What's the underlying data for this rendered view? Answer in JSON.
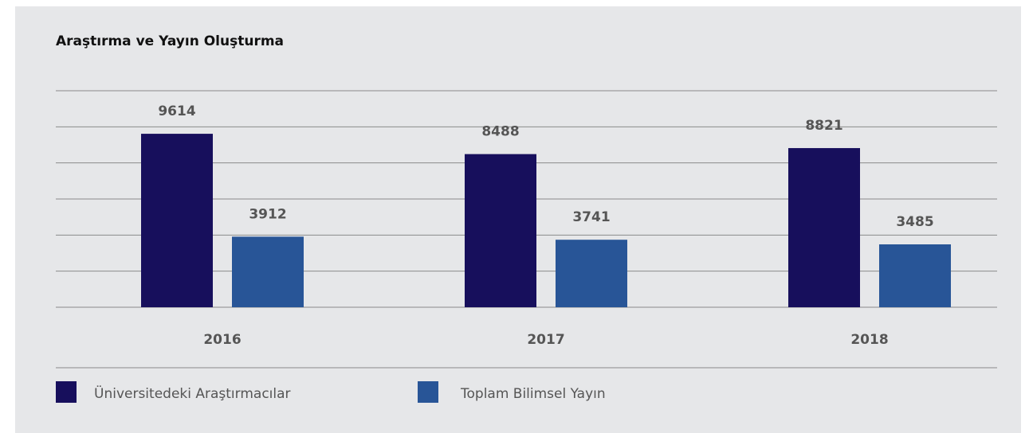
{
  "chart_data": {
    "type": "bar",
    "title": "Araştırma ve Yayın Oluşturma",
    "categories": [
      "2016",
      "2017",
      "2018"
    ],
    "series": [
      {
        "name": "Üniversitedeki Araştırmacılar",
        "color": "#170f5c",
        "values": [
          9614,
          8488,
          8821
        ]
      },
      {
        "name": "Toplam Bilimsel Yayın",
        "color": "#285597",
        "values": [
          3912,
          3741,
          3485
        ]
      }
    ],
    "ylim": [
      0,
      12000
    ],
    "yticks": [
      0,
      2000,
      4000,
      6000,
      8000,
      10000,
      12000
    ],
    "grid": true
  }
}
